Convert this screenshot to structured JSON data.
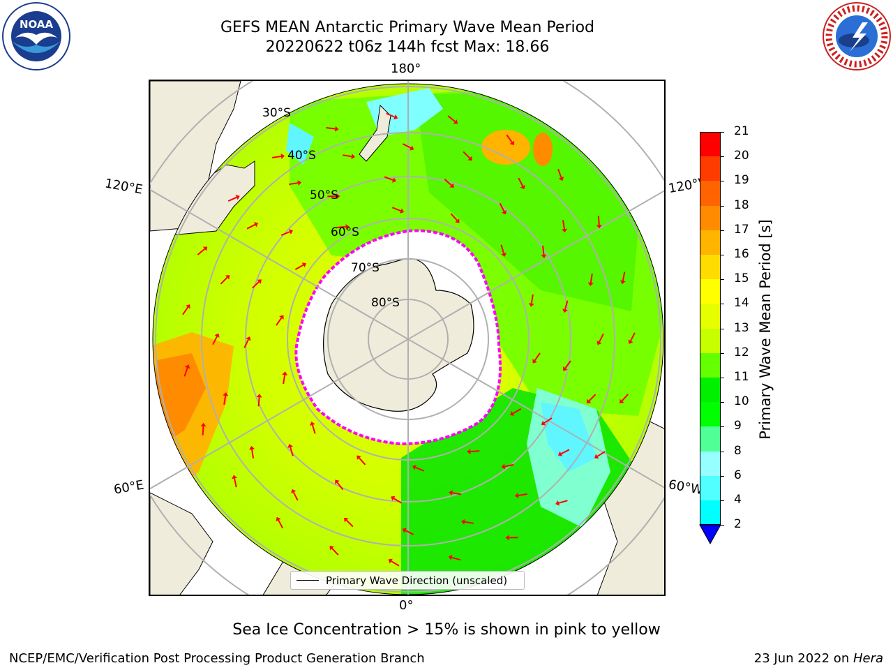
{
  "title": {
    "line1": "GEFS MEAN Antarctic Primary Wave Mean Period",
    "line2": "20220622 t06z 144h fcst   Max: 18.66"
  },
  "map": {
    "projection": "south-polar-stereographic",
    "meridian_labels": {
      "top": "180°",
      "bottom": "0°",
      "upper_left": "120°E",
      "upper_right": "120°W",
      "lower_left": "60°E",
      "lower_right": "60°W"
    },
    "latitude_labels": [
      "30°S",
      "40°S",
      "50°S",
      "60°S",
      "70°S",
      "80°S"
    ],
    "legend_label": "Primary Wave Direction (unscaled)",
    "arrow_color": "#ff0000",
    "land_color": "#efecdc",
    "ice_edge_color": "#ff00ff"
  },
  "colorbar": {
    "label": "Primary Wave Mean Period [s]",
    "ticks": [
      "21",
      "20",
      "19",
      "18",
      "17",
      "16",
      "15",
      "14",
      "13",
      "12",
      "11",
      "10",
      "9",
      "8",
      "6",
      "4",
      "2"
    ],
    "colors": [
      "#ff0000",
      "#ff3c00",
      "#ff6400",
      "#ff8c00",
      "#ffb400",
      "#ffdc00",
      "#ffff00",
      "#e6ff00",
      "#c8ff00",
      "#64ff00",
      "#00f000",
      "#00ff00",
      "#50ff96",
      "#96ffff",
      "#50ffff",
      "#00ffff",
      "#00c8ff",
      "#0078ff",
      "#0000ff"
    ],
    "extend_min_color": "#0000ff"
  },
  "notes": {
    "sea_ice": "Sea Ice Concentration > 15% is shown in pink to yellow",
    "producer": "NCEP/EMC/Verification Post Processing Product Generation Branch",
    "date_prefix": "23 Jun 2022 on ",
    "machine": "Hera"
  },
  "logos": {
    "left_text": "NOAA",
    "right_text": "NATIONAL WEATHER SERVICE"
  }
}
